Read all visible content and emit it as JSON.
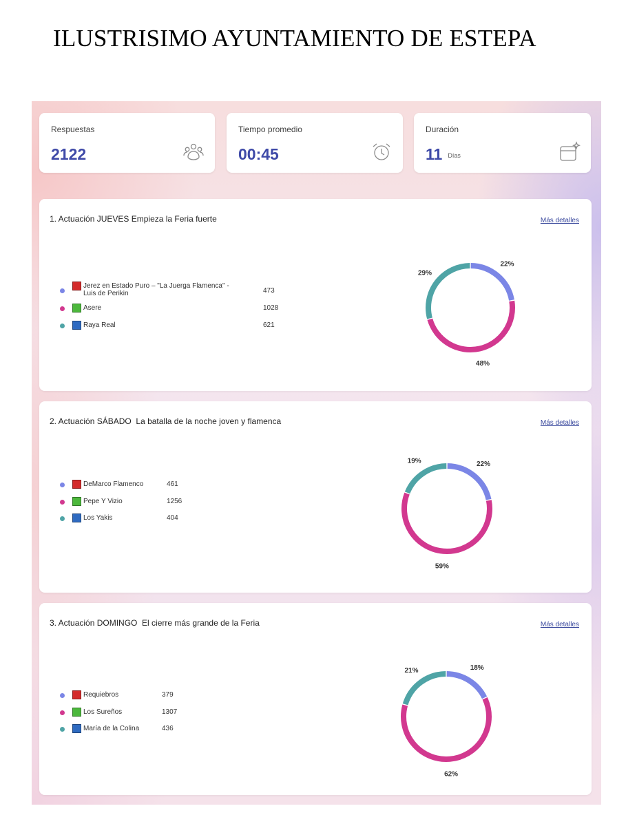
{
  "document": {
    "title": "ILUSTRISIMO AYUNTAMIENTO DE ESTEPA"
  },
  "stats": {
    "responses": {
      "label": "Respuestas",
      "value": "2122",
      "icon": "people-icon"
    },
    "avg_time": {
      "label": "Tiempo promedio",
      "value": "00:45",
      "icon": "alarm-clock-icon"
    },
    "duration": {
      "label": "Duración",
      "value": "11",
      "unit": "Días",
      "icon": "calendar-sparkle-icon"
    }
  },
  "link_label": "Más detalles",
  "colors": {
    "series": [
      "#7b86e6",
      "#d2388f",
      "#4fa4a6"
    ],
    "swatches": [
      "#d42c2c",
      "#4cb83c",
      "#2f6bc1"
    ],
    "accent": "#3f4aa8"
  },
  "chart_data": [
    {
      "type": "pie",
      "title": "1. Actuación JUEVES Empieza la Feria fuerte",
      "categories": [
        "Jerez en Estado Puro – \"La Juerga Flamenca\" - Luis de Perikin",
        "Asere",
        "Raya Real"
      ],
      "values": [
        473,
        1028,
        621
      ],
      "percent_labels": [
        "22%",
        "48%",
        "29%"
      ]
    },
    {
      "type": "pie",
      "title": "2. Actuación SÁBADO  La batalla de la noche joven y flamenca",
      "categories": [
        "DeMarco Flamenco",
        "Pepe Y Vizio",
        "Los Yakis"
      ],
      "values": [
        461,
        1256,
        404
      ],
      "percent_labels": [
        "22%",
        "59%",
        "19%"
      ]
    },
    {
      "type": "pie",
      "title": "3. Actuación DOMINGO  El cierre más grande de la Feria",
      "categories": [
        "Requiebros",
        "Los Sureños",
        "María de la Colina"
      ],
      "values": [
        379,
        1307,
        436
      ],
      "percent_labels": [
        "18%",
        "62%",
        "21%"
      ]
    }
  ]
}
